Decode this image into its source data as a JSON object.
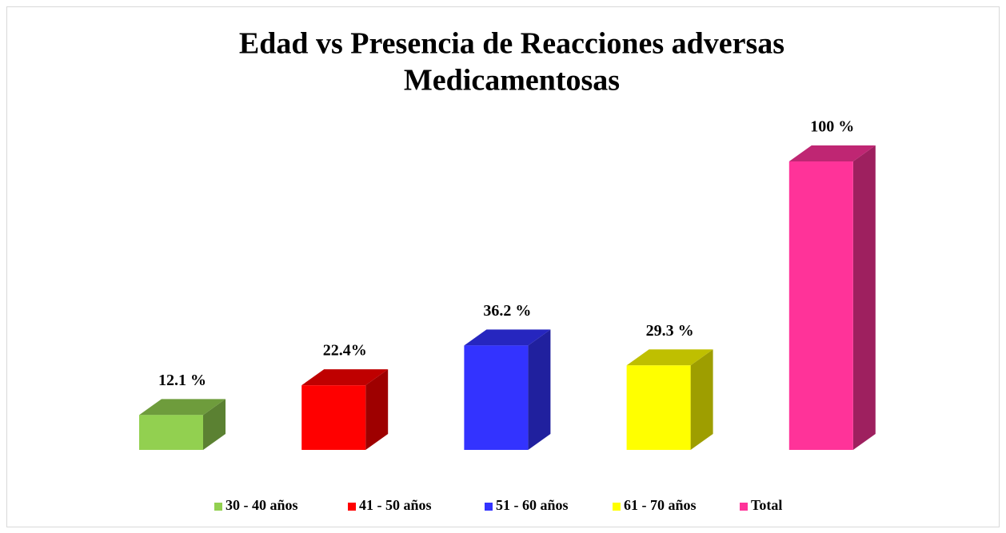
{
  "chart_data": {
    "type": "bar3d",
    "title": [
      "Edad vs Presencia de Reacciones adversas",
      "Medicamentosas"
    ],
    "series": [
      {
        "name": "30 - 40 años",
        "color": "#92d050",
        "values": [
          12.1
        ],
        "value_labels": [
          "12.1 %"
        ]
      },
      {
        "name": "41 - 50 años",
        "color": "#ff0000",
        "values": [
          22.4
        ],
        "value_labels": [
          "22.4%"
        ]
      },
      {
        "name": "51 - 60 años",
        "color": "#3333ff",
        "values": [
          36.2
        ],
        "value_labels": [
          "36.2 %"
        ]
      },
      {
        "name": "61 - 70 años",
        "color": "#ffff00",
        "values": [
          29.3
        ],
        "value_labels": [
          "29.3 %"
        ]
      },
      {
        "name": "Total",
        "color": "#ff3399",
        "values": [
          100
        ],
        "value_labels": [
          "100 %"
        ]
      }
    ],
    "ylim": [
      0,
      100
    ],
    "legend": "bottom"
  }
}
